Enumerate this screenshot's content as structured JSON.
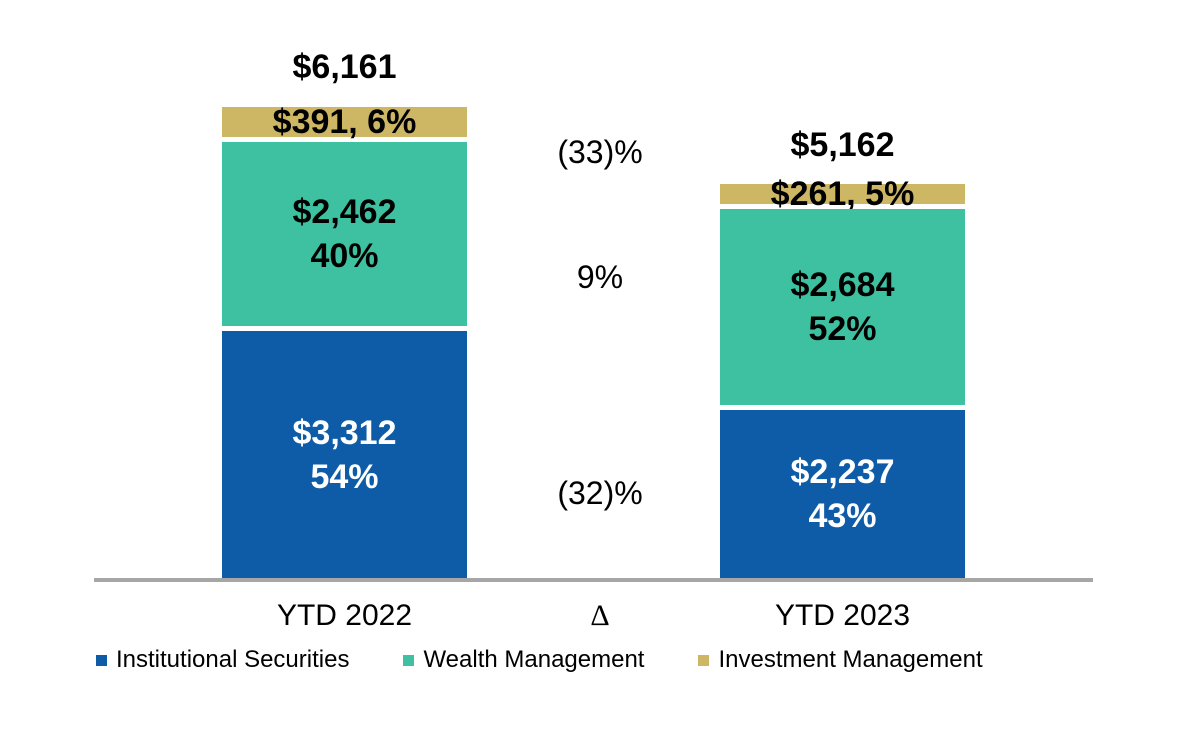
{
  "chart_data": {
    "type": "bar",
    "variant": "stacked-column",
    "categories": [
      "YTD 2022",
      "YTD 2023"
    ],
    "series": [
      {
        "name": "Institutional Securities",
        "color": "#0E5CA8",
        "values": [
          3312,
          2237
        ],
        "share_pct": [
          54,
          43
        ]
      },
      {
        "name": "Wealth Management",
        "color": "#3EC1A0",
        "values": [
          2462,
          2684
        ],
        "share_pct": [
          40,
          52
        ]
      },
      {
        "name": "Investment Management",
        "color": "#CDB764",
        "values": [
          391,
          261
        ],
        "share_pct": [
          6,
          5
        ]
      }
    ],
    "totals": [
      6161,
      5162
    ],
    "delta_column": {
      "label": "Δ",
      "values_top_to_bottom": [
        "(33)%",
        "9%",
        "(32)%"
      ]
    },
    "legend_position": "bottom",
    "grid": false,
    "axis_line_color": "#A6A6A6"
  },
  "bars": {
    "ytd2022": {
      "total": "$6,161",
      "investment_management": "$391, 6%",
      "wealth_management_line1": "$2,462",
      "wealth_management_line2": "40%",
      "institutional_securities_line1": "$3,312",
      "institutional_securities_line2": "54%",
      "axis_label": "YTD 2022"
    },
    "ytd2023": {
      "total": "$5,162",
      "investment_management": "$261, 5%",
      "wealth_management_line1": "$2,684",
      "wealth_management_line2": "52%",
      "institutional_securities_line1": "$2,237",
      "institutional_securities_line2": "43%",
      "axis_label": "YTD 2023"
    },
    "delta": {
      "axis_label": "Δ",
      "top": "(33)%",
      "middle": "9%",
      "bottom": "(32)%"
    }
  },
  "legend": {
    "items": [
      {
        "label": "Institutional Securities",
        "color": "#0E5CA8"
      },
      {
        "label": "Wealth Management",
        "color": "#3EC1A0"
      },
      {
        "label": "Investment Management",
        "color": "#CDB764"
      }
    ]
  },
  "colors": {
    "institutional_securities": "#0E5CA8",
    "wealth_management": "#3EC1A0",
    "investment_management": "#CDB764",
    "axis_line": "#A6A6A6",
    "text": "#000000",
    "background": "#FFFFFF"
  }
}
